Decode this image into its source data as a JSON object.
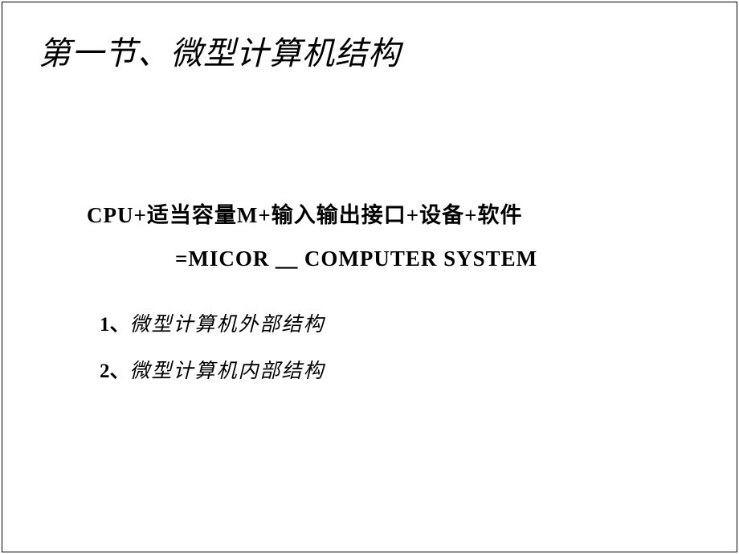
{
  "slide": {
    "title": "第一节、微型计算机结构",
    "formula": {
      "line1": "CPU+适当容量M+输入输出接口+设备+软件",
      "line2": "=MICOR ＿ COMPUTER SYSTEM"
    },
    "list": {
      "item1_number": "1、",
      "item1_text": "微型计算机外部结构",
      "item2_number": "2、",
      "item2_text": "微型计算机内部结构"
    },
    "colors": {
      "background": "#ffffff",
      "text": "#000000",
      "border": "#000000"
    },
    "fonts": {
      "title_family": "KaiTi",
      "title_size": 40,
      "body_size": 27,
      "list_size": 25
    }
  }
}
